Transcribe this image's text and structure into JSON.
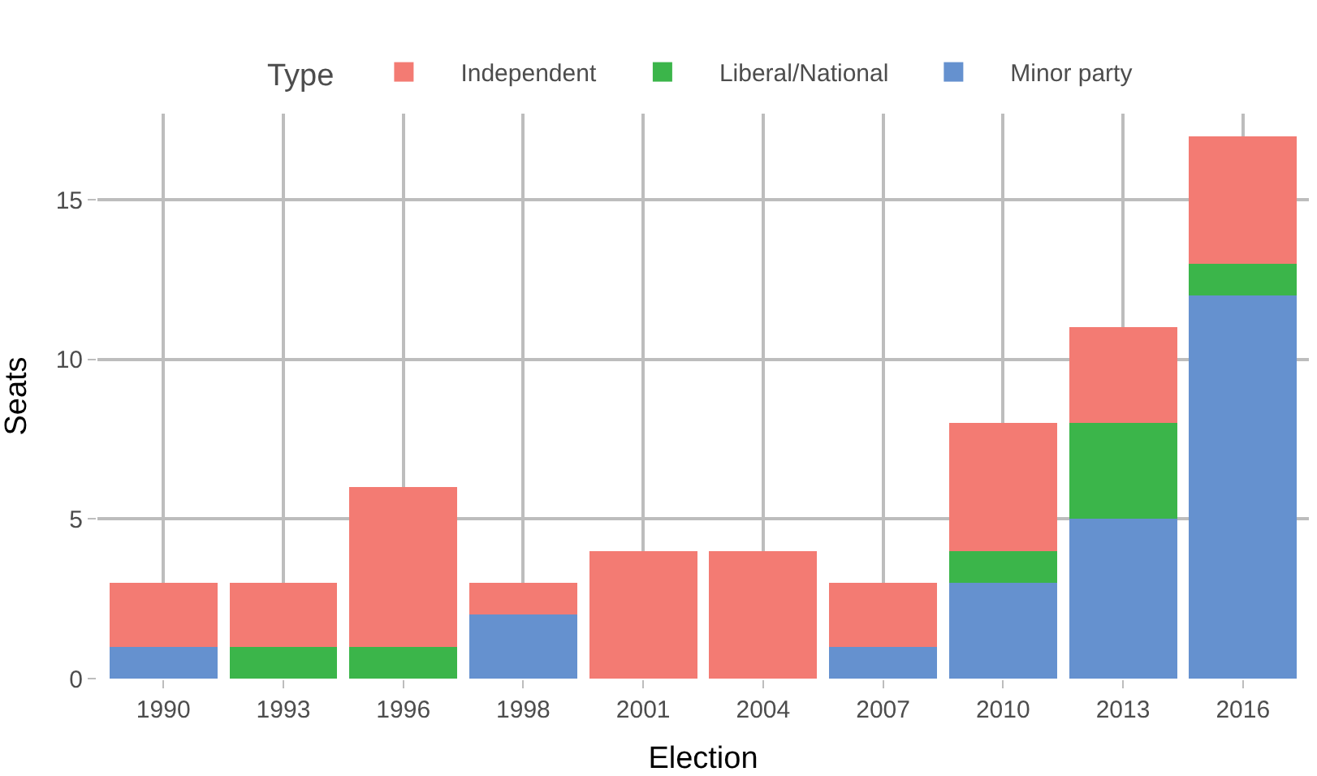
{
  "chart_data": {
    "type": "bar",
    "stacked": true,
    "xlabel": "Election",
    "ylabel": "Seats",
    "legend_title": "Type",
    "legend": "top",
    "grid": true,
    "categories": [
      "1990",
      "1993",
      "1996",
      "1998",
      "2001",
      "2004",
      "2007",
      "2010",
      "2013",
      "2016"
    ],
    "series": [
      {
        "name": "Minor party",
        "color": "#6591cf",
        "values": [
          1,
          0,
          0,
          2,
          0,
          0,
          1,
          3,
          5,
          12
        ]
      },
      {
        "name": "Liberal/National",
        "color": "#3bb54a",
        "values": [
          0,
          1,
          1,
          0,
          0,
          0,
          0,
          1,
          3,
          1
        ]
      },
      {
        "name": "Independent",
        "color": "#f37b73",
        "values": [
          2,
          2,
          5,
          1,
          4,
          4,
          2,
          4,
          3,
          4
        ]
      }
    ],
    "ylim": [
      0,
      17.7
    ],
    "yticks": [
      0,
      5,
      10,
      15
    ]
  }
}
